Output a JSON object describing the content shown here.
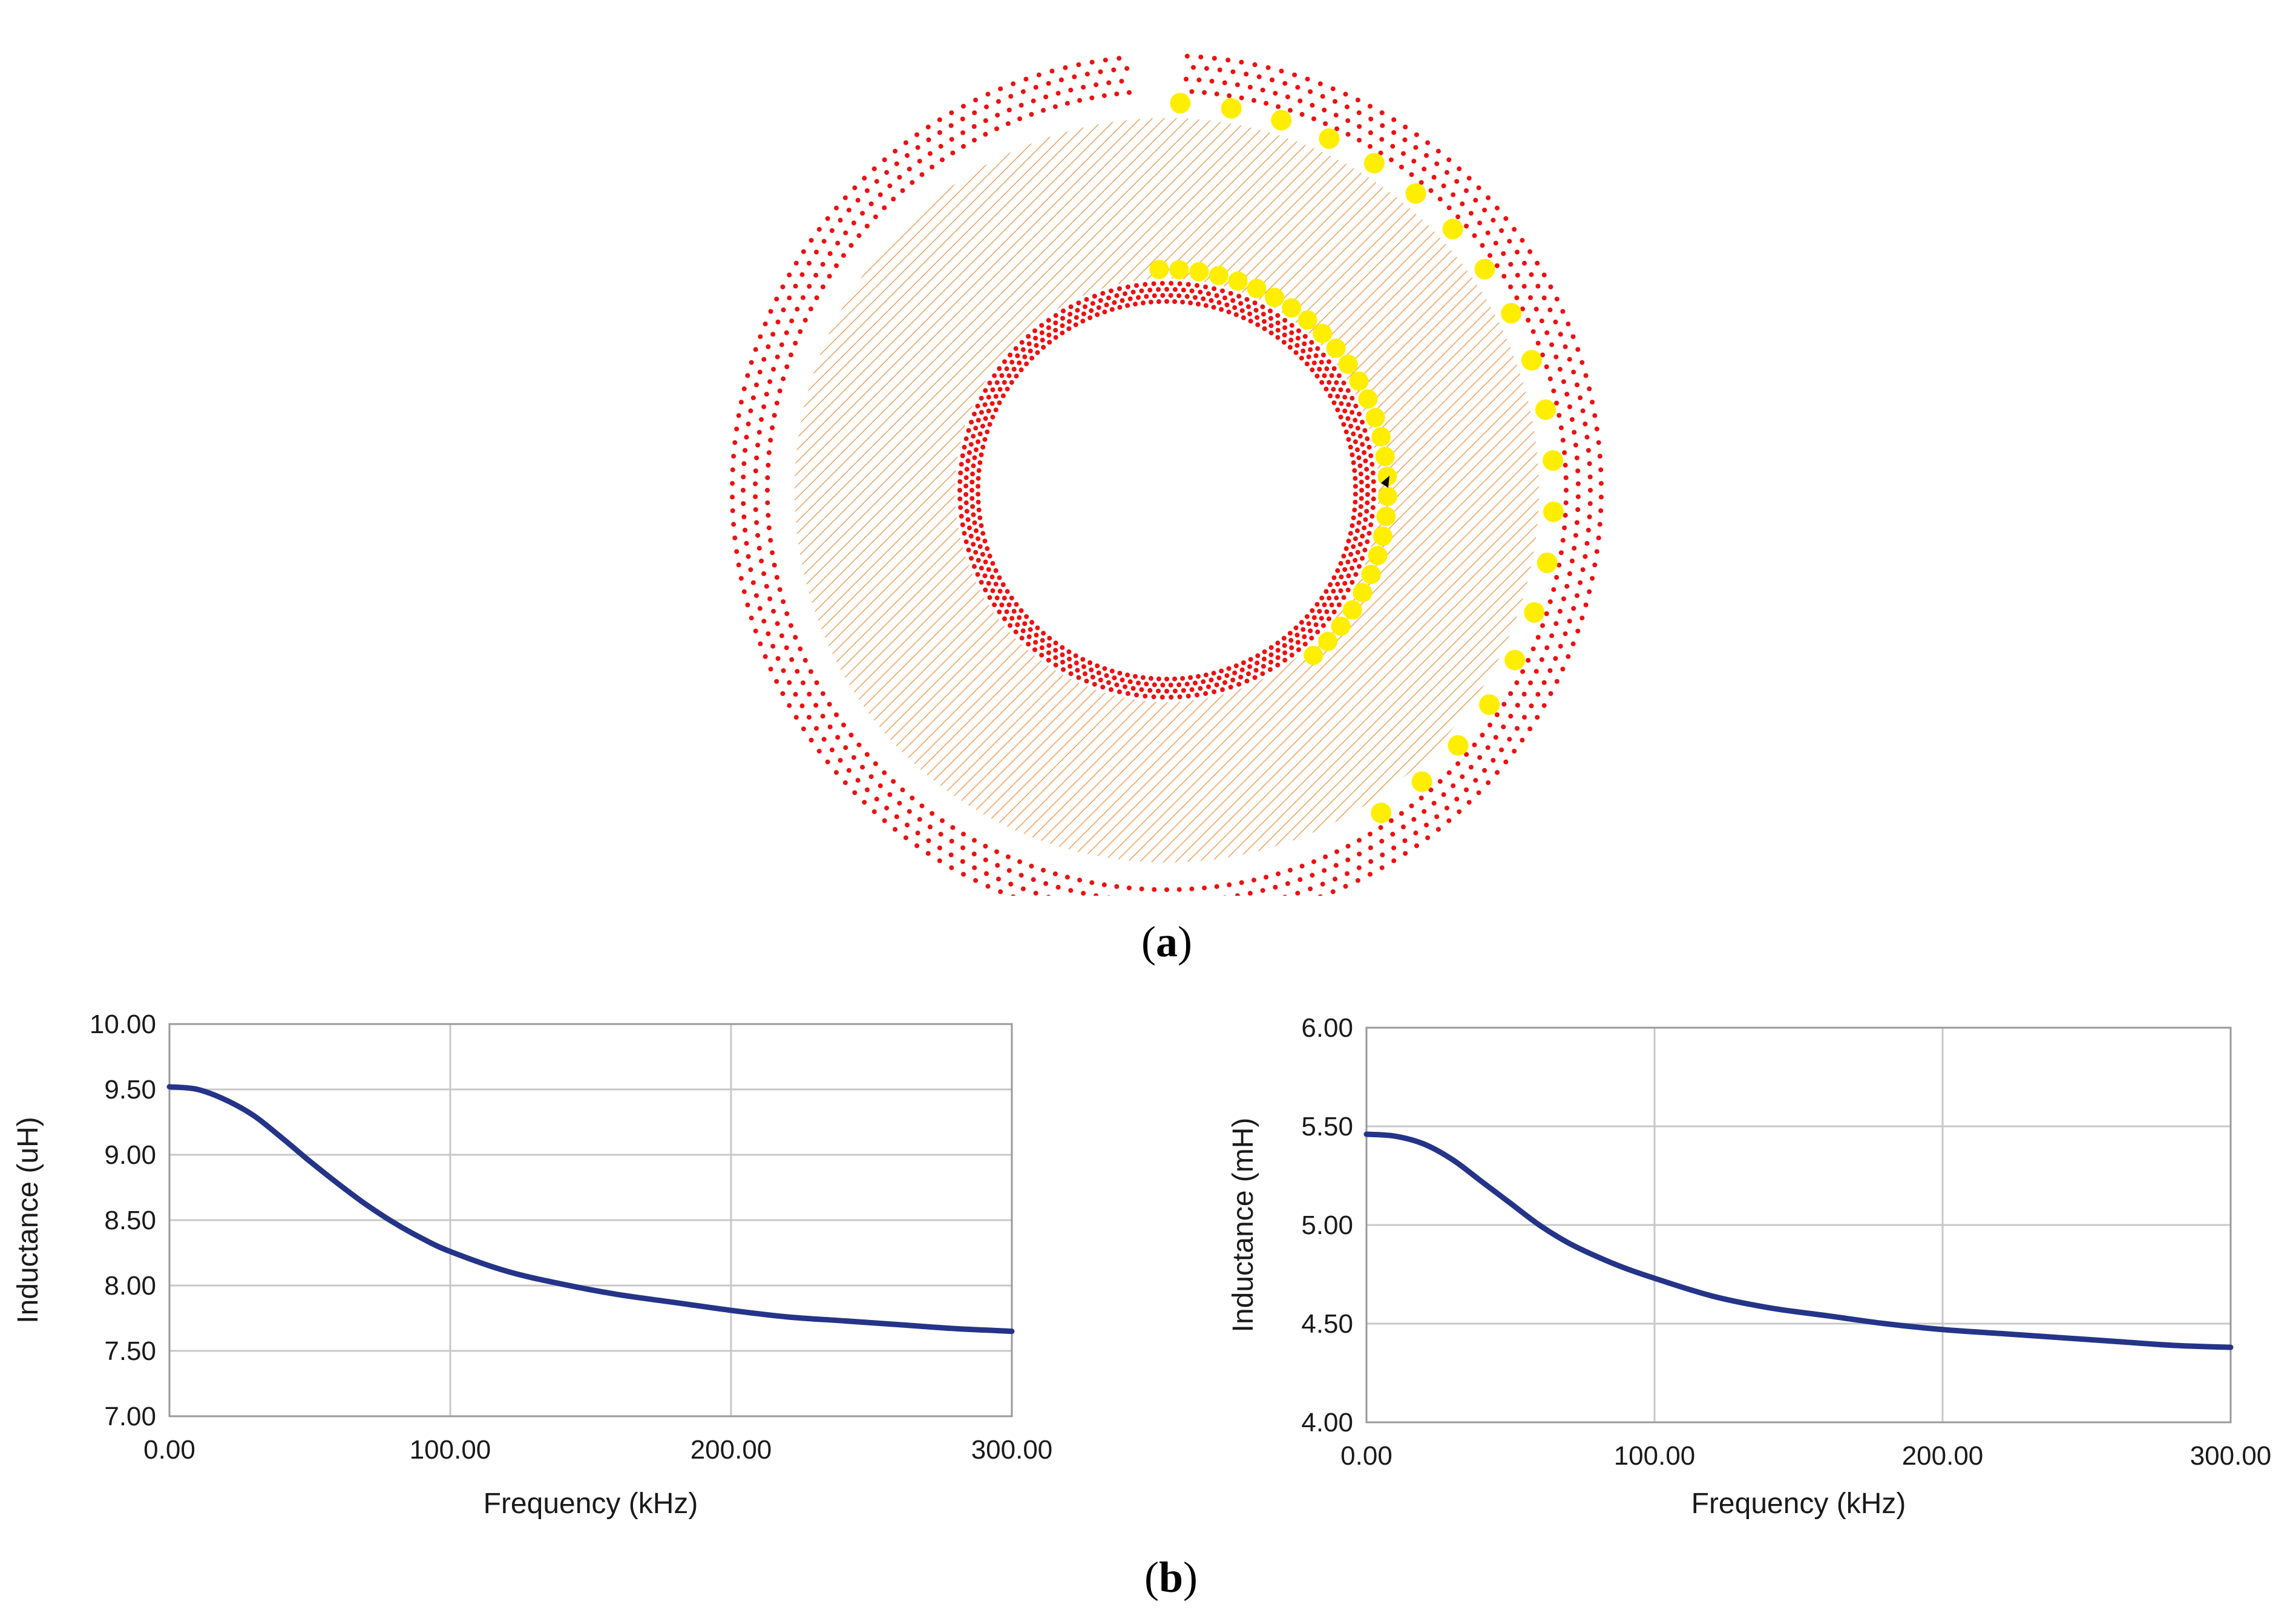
{
  "figure": {
    "caption_a": "a",
    "caption_b": "b",
    "colors": {
      "outer_dots": "#ee1111",
      "inner_dots": "#ee1111",
      "yellow": "#ffee00",
      "hatch": "#f2a05a",
      "curve": "#243488",
      "grid": "#c8c8c8"
    }
  },
  "chart_data": [
    {
      "type": "line",
      "title": "",
      "xlabel": "Frequency (kHz)",
      "ylabel": "Inductance (uH)",
      "xlim": [
        0,
        300
      ],
      "ylim": [
        7.0,
        10.0
      ],
      "xticks": [
        "0.00",
        "100.00",
        "200.00",
        "300.00"
      ],
      "yticks": [
        "7.00",
        "7.50",
        "8.00",
        "8.50",
        "9.00",
        "9.50",
        "10.00"
      ],
      "grid": true,
      "series": [
        {
          "name": "Inductance",
          "x": [
            0,
            10,
            20,
            30,
            40,
            50,
            60,
            70,
            80,
            90,
            100,
            120,
            140,
            160,
            180,
            200,
            220,
            240,
            260,
            280,
            300
          ],
          "y": [
            9.52,
            9.5,
            9.42,
            9.3,
            9.13,
            8.95,
            8.78,
            8.62,
            8.48,
            8.36,
            8.26,
            8.11,
            8.01,
            7.93,
            7.87,
            7.81,
            7.76,
            7.73,
            7.7,
            7.67,
            7.65
          ]
        }
      ]
    },
    {
      "type": "line",
      "title": "",
      "xlabel": "Frequency (kHz)",
      "ylabel": "Inductance (mH)",
      "xlim": [
        0,
        300
      ],
      "ylim": [
        4.0,
        6.0
      ],
      "xticks": [
        "0.00",
        "100.00",
        "200.00",
        "300.00"
      ],
      "yticks": [
        "4.00",
        "4.50",
        "5.00",
        "5.50",
        "6.00"
      ],
      "grid": true,
      "series": [
        {
          "name": "Inductance",
          "x": [
            0,
            10,
            20,
            30,
            40,
            50,
            60,
            70,
            80,
            90,
            100,
            120,
            140,
            160,
            180,
            200,
            220,
            240,
            260,
            280,
            300
          ],
          "y": [
            5.46,
            5.45,
            5.41,
            5.33,
            5.22,
            5.11,
            5.0,
            4.91,
            4.84,
            4.78,
            4.73,
            4.64,
            4.58,
            4.54,
            4.5,
            4.47,
            4.45,
            4.43,
            4.41,
            4.39,
            4.38
          ]
        }
      ]
    }
  ]
}
